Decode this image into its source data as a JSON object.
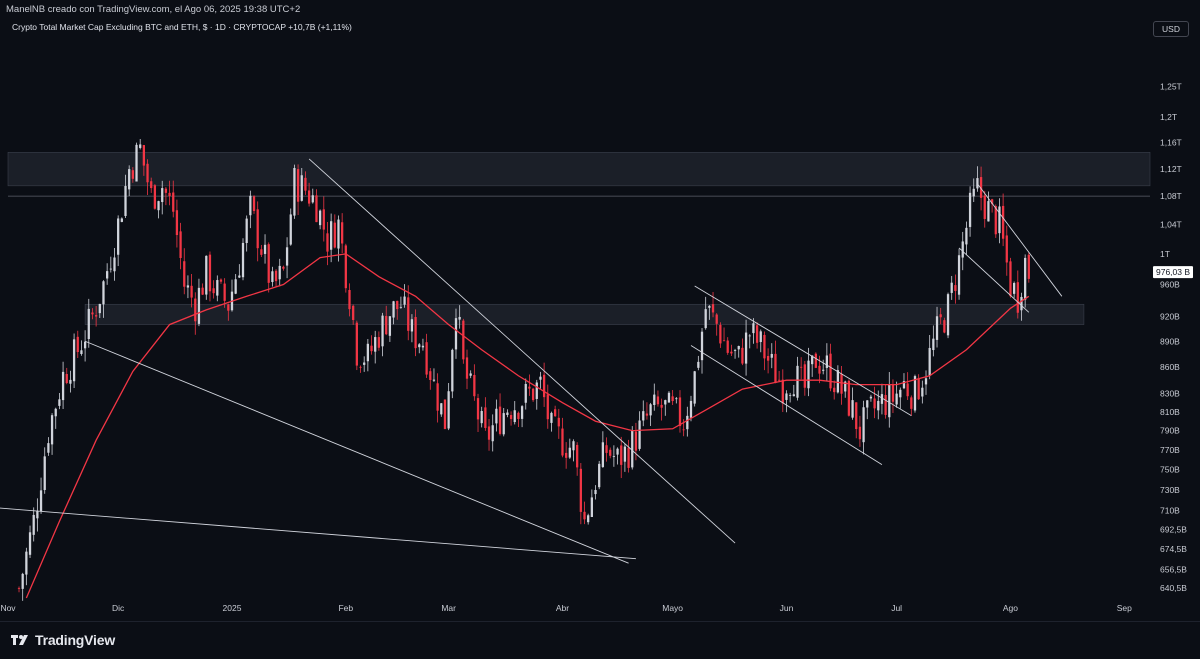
{
  "header": {
    "attribution": "ManelNB creado con TradingView.com, el Ago 06, 2025 19:38 UTC+2",
    "chart_title": "Crypto Total Market Cap Excluding BTC and ETH, $ · 1D · CRYPTOCAP +10,7B (+1,11%)",
    "currency": "USD"
  },
  "footer": {
    "brand": "TradingView"
  },
  "colors": {
    "background": "#0b0e15",
    "candle_up": "#d1d4dc",
    "candle_down": "#f23645",
    "moving_average": "#f23645",
    "trendline": "#d1d4dc",
    "zone": "#2a2e39",
    "price_tag_bg": "#ffffff"
  },
  "chart_data": {
    "type": "candlestick",
    "symbol": "CRYPTOCAP",
    "interval": "1D",
    "scale": "log",
    "x_range": [
      "2024-11-01",
      "2025-09-08"
    ],
    "y_range": [
      632,
      1330
    ],
    "y_ticks": [
      {
        "label": "1,25T",
        "value": 1250
      },
      {
        "label": "1,2T",
        "value": 1200
      },
      {
        "label": "1,16T",
        "value": 1160
      },
      {
        "label": "1,12T",
        "value": 1120
      },
      {
        "label": "1,08T",
        "value": 1080
      },
      {
        "label": "1,04T",
        "value": 1040
      },
      {
        "label": "1T",
        "value": 1000
      },
      {
        "label": "960B",
        "value": 960
      },
      {
        "label": "920B",
        "value": 920
      },
      {
        "label": "890B",
        "value": 890
      },
      {
        "label": "860B",
        "value": 860
      },
      {
        "label": "830B",
        "value": 830
      },
      {
        "label": "810B",
        "value": 810
      },
      {
        "label": "790B",
        "value": 790
      },
      {
        "label": "770B",
        "value": 770
      },
      {
        "label": "750B",
        "value": 750
      },
      {
        "label": "730B",
        "value": 730
      },
      {
        "label": "710B",
        "value": 710
      },
      {
        "label": "692,5B",
        "value": 692.5
      },
      {
        "label": "674,5B",
        "value": 674.5
      },
      {
        "label": "656,5B",
        "value": 656.5
      },
      {
        "label": "640,5B",
        "value": 640.5
      }
    ],
    "x_ticks": [
      {
        "label": "Nov",
        "date": "2024-11-01"
      },
      {
        "label": "Dic",
        "date": "2024-12-01"
      },
      {
        "label": "2025",
        "date": "2025-01-01"
      },
      {
        "label": "Feb",
        "date": "2025-02-01"
      },
      {
        "label": "Mar",
        "date": "2025-03-01"
      },
      {
        "label": "Abr",
        "date": "2025-04-01"
      },
      {
        "label": "Mayo",
        "date": "2025-05-01"
      },
      {
        "label": "Jun",
        "date": "2025-06-01"
      },
      {
        "label": "Jul",
        "date": "2025-07-01"
      },
      {
        "label": "Ago",
        "date": "2025-08-01"
      },
      {
        "label": "Sep",
        "date": "2025-09-01"
      }
    ],
    "last_price": {
      "label": "976,03 B",
      "value": 976.03
    },
    "reference_line": 1080,
    "price_path": [
      [
        "2024-11-04",
        640
      ],
      [
        "2024-11-08",
        700
      ],
      [
        "2024-11-12",
        790
      ],
      [
        "2024-11-16",
        850
      ],
      [
        "2024-11-20",
        880
      ],
      [
        "2024-11-24",
        920
      ],
      [
        "2024-11-27",
        960
      ],
      [
        "2024-12-01",
        1040
      ],
      [
        "2024-12-04",
        1120
      ],
      [
        "2024-12-07",
        1150
      ],
      [
        "2024-12-10",
        1080
      ],
      [
        "2024-12-13",
        1095
      ],
      [
        "2024-12-16",
        1060
      ],
      [
        "2024-12-19",
        960
      ],
      [
        "2024-12-22",
        935
      ],
      [
        "2024-12-25",
        975
      ],
      [
        "2024-12-28",
        950
      ],
      [
        "2024-12-31",
        935
      ],
      [
        "2025-01-03",
        990
      ],
      [
        "2025-01-06",
        1060
      ],
      [
        "2025-01-09",
        1010
      ],
      [
        "2025-01-12",
        955
      ],
      [
        "2025-01-15",
        975
      ],
      [
        "2025-01-18",
        1100
      ],
      [
        "2025-01-21",
        1090
      ],
      [
        "2025-01-24",
        1070
      ],
      [
        "2025-01-27",
        1020
      ],
      [
        "2025-01-30",
        1040
      ],
      [
        "2025-02-02",
        950
      ],
      [
        "2025-02-04",
        880
      ],
      [
        "2025-02-07",
        870
      ],
      [
        "2025-02-10",
        900
      ],
      [
        "2025-02-13",
        925
      ],
      [
        "2025-02-16",
        935
      ],
      [
        "2025-02-19",
        900
      ],
      [
        "2025-02-22",
        890
      ],
      [
        "2025-02-25",
        840
      ],
      [
        "2025-02-28",
        800
      ],
      [
        "2025-03-03",
        940
      ],
      [
        "2025-03-05",
        860
      ],
      [
        "2025-03-08",
        820
      ],
      [
        "2025-03-11",
        780
      ],
      [
        "2025-03-14",
        800
      ],
      [
        "2025-03-17",
        815
      ],
      [
        "2025-03-20",
        820
      ],
      [
        "2025-03-23",
        830
      ],
      [
        "2025-03-26",
        840
      ],
      [
        "2025-03-29",
        790
      ],
      [
        "2025-04-01",
        780
      ],
      [
        "2025-04-04",
        770
      ],
      [
        "2025-04-07",
        700
      ],
      [
        "2025-04-10",
        740
      ],
      [
        "2025-04-13",
        770
      ],
      [
        "2025-04-16",
        760
      ],
      [
        "2025-04-19",
        770
      ],
      [
        "2025-04-22",
        790
      ],
      [
        "2025-04-25",
        810
      ],
      [
        "2025-04-28",
        815
      ],
      [
        "2025-05-01",
        810
      ],
      [
        "2025-05-04",
        800
      ],
      [
        "2025-05-07",
        850
      ],
      [
        "2025-05-10",
        930
      ],
      [
        "2025-05-13",
        910
      ],
      [
        "2025-05-16",
        880
      ],
      [
        "2025-05-19",
        870
      ],
      [
        "2025-05-22",
        900
      ],
      [
        "2025-05-25",
        885
      ],
      [
        "2025-05-28",
        860
      ],
      [
        "2025-05-31",
        840
      ],
      [
        "2025-06-03",
        850
      ],
      [
        "2025-06-06",
        835
      ],
      [
        "2025-06-09",
        870
      ],
      [
        "2025-06-12",
        860
      ],
      [
        "2025-06-15",
        840
      ],
      [
        "2025-06-18",
        820
      ],
      [
        "2025-06-21",
        790
      ],
      [
        "2025-06-24",
        810
      ],
      [
        "2025-06-27",
        820
      ],
      [
        "2025-06-30",
        825
      ],
      [
        "2025-07-03",
        840
      ],
      [
        "2025-07-06",
        830
      ],
      [
        "2025-07-09",
        860
      ],
      [
        "2025-07-12",
        900
      ],
      [
        "2025-07-15",
        930
      ],
      [
        "2025-07-18",
        990
      ],
      [
        "2025-07-21",
        1060
      ],
      [
        "2025-07-23",
        1090
      ],
      [
        "2025-07-26",
        1060
      ],
      [
        "2025-07-29",
        1040
      ],
      [
        "2025-08-01",
        960
      ],
      [
        "2025-08-03",
        945
      ],
      [
        "2025-08-05",
        990
      ],
      [
        "2025-08-06",
        976
      ]
    ],
    "moving_average": [
      [
        "2024-11-06",
        632
      ],
      [
        "2024-11-15",
        700
      ],
      [
        "2024-11-25",
        780
      ],
      [
        "2024-12-05",
        855
      ],
      [
        "2024-12-15",
        910
      ],
      [
        "2024-12-25",
        928
      ],
      [
        "2025-01-05",
        945
      ],
      [
        "2025-01-15",
        960
      ],
      [
        "2025-01-25",
        995
      ],
      [
        "2025-02-01",
        1000
      ],
      [
        "2025-02-10",
        970
      ],
      [
        "2025-02-20",
        945
      ],
      [
        "2025-03-01",
        910
      ],
      [
        "2025-03-10",
        880
      ],
      [
        "2025-03-20",
        850
      ],
      [
        "2025-04-01",
        820
      ],
      [
        "2025-04-10",
        800
      ],
      [
        "2025-04-20",
        790
      ],
      [
        "2025-05-01",
        792
      ],
      [
        "2025-05-10",
        812
      ],
      [
        "2025-05-20",
        835
      ],
      [
        "2025-06-01",
        845
      ],
      [
        "2025-06-10",
        845
      ],
      [
        "2025-06-20",
        840
      ],
      [
        "2025-07-01",
        840
      ],
      [
        "2025-07-10",
        850
      ],
      [
        "2025-07-20",
        880
      ],
      [
        "2025-08-01",
        930
      ],
      [
        "2025-08-06",
        945
      ]
    ],
    "zones": [
      {
        "label": "",
        "from": 1095,
        "to": 1145,
        "start": "2024-11-01",
        "end": "2025-09-08"
      },
      {
        "label": "",
        "from": 910,
        "to": 935,
        "start": "2024-11-22",
        "end": "2025-08-21"
      }
    ],
    "trendlines": [
      {
        "from": [
          "2024-11-22",
          890
        ],
        "to": [
          "2025-04-19",
          662
        ]
      },
      {
        "from": [
          "2024-10-28",
          713
        ],
        "to": [
          "2025-04-21",
          666
        ]
      },
      {
        "from": [
          "2025-01-22",
          1135
        ],
        "to": [
          "2025-05-18",
          680
        ]
      },
      {
        "from": [
          "2025-05-06",
          885
        ],
        "to": [
          "2025-06-27",
          755
        ]
      },
      {
        "from": [
          "2025-05-07",
          958
        ],
        "to": [
          "2025-07-05",
          806
        ]
      },
      {
        "from": [
          "2025-07-23",
          1098
        ],
        "to": [
          "2025-08-15",
          945
        ]
      },
      {
        "from": [
          "2025-07-18",
          1008
        ],
        "to": [
          "2025-08-06",
          925
        ]
      }
    ]
  }
}
